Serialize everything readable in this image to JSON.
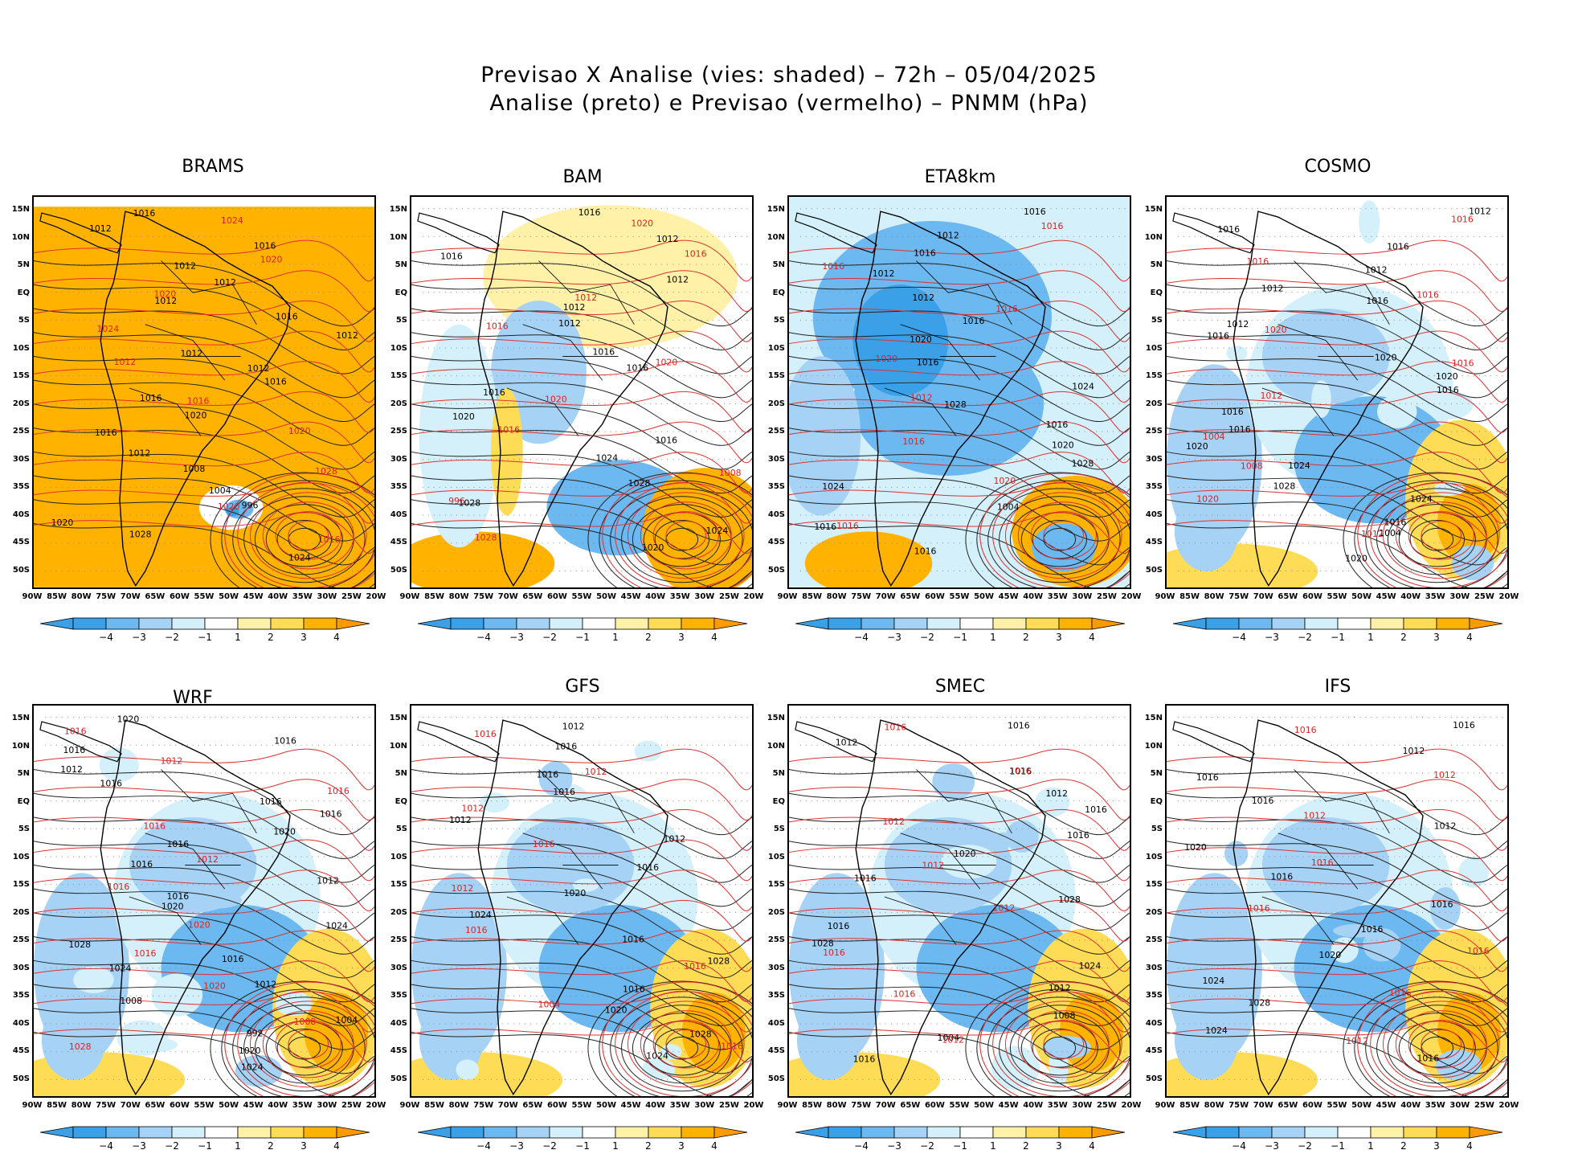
{
  "title": {
    "line1": "Previsao X Analise (vies: shaded) – 72h – 05/04/2025",
    "line2": "Analise (preto) e Previsao (vermelho) – PNMM (hPa)"
  },
  "axes": {
    "lat_labels": [
      "15N",
      "10N",
      "5N",
      "EQ",
      "5S",
      "10S",
      "15S",
      "20S",
      "25S",
      "30S",
      "35S",
      "40S",
      "45S",
      "50S"
    ],
    "lon_labels": [
      "90W",
      "85W",
      "80W",
      "75W",
      "70W",
      "65W",
      "60W",
      "55W",
      "50W",
      "45W",
      "40W",
      "35W",
      "30W",
      "25W",
      "20W"
    ]
  },
  "colorbar": {
    "ticks": [
      "−4",
      "−3",
      "−2",
      "−1",
      "1",
      "2",
      "3",
      "4"
    ],
    "colors": [
      "#3aa0e8",
      "#6cb8f0",
      "#a6d3f5",
      "#d4f0fa",
      "#ffffff",
      "#fff2a8",
      "#ffdc55",
      "#ffb300",
      "#ff9a00"
    ]
  },
  "panels": [
    {
      "name": "BRAMS",
      "base": "orange",
      "black_labels": [
        "1016",
        "1012",
        "1016",
        "1012",
        "1012",
        "1012",
        "1016",
        "1012",
        "1012",
        "1012",
        "1016",
        "1016",
        "1020",
        "1016",
        "1012",
        "1008",
        "1004",
        "996",
        "1020",
        "1028",
        "1024"
      ],
      "red_labels": [
        "1024",
        "1020",
        "1020",
        "1024",
        "1012",
        "1016",
        "1020",
        "1028",
        "1020",
        "1016"
      ]
    },
    {
      "name": "BAM",
      "base": "mixed",
      "black_labels": [
        "1016",
        "1012",
        "1016",
        "1012",
        "1012",
        "1012",
        "1016",
        "1016",
        "1016",
        "1020",
        "1016",
        "1024",
        "1028",
        "1028",
        "1024",
        "1020"
      ],
      "red_labels": [
        "1020",
        "1016",
        "1012",
        "1016",
        "1020",
        "1020",
        "1016",
        "1008",
        "996",
        "1028"
      ]
    },
    {
      "name": "ETA8km",
      "base": "blue",
      "black_labels": [
        "1016",
        "1012",
        "1016",
        "1012",
        "1012",
        "1016",
        "1020",
        "1016",
        "1024",
        "1028",
        "1016",
        "1020",
        "1028",
        "1024",
        "1004",
        "1016",
        "1016"
      ],
      "red_labels": [
        "1016",
        "1016",
        "1016",
        "1020",
        "1012",
        "1016",
        "1020",
        "1016"
      ]
    },
    {
      "name": "COSMO",
      "base": "light",
      "black_labels": [
        "1012",
        "1016",
        "1016",
        "1012",
        "1012",
        "1016",
        "1012",
        "1016",
        "1020",
        "1020",
        "1016",
        "1016",
        "1016",
        "1020",
        "1024",
        "1028",
        "1024",
        "1016",
        "1004",
        "1020"
      ],
      "red_labels": [
        "1016",
        "1016",
        "1016",
        "1020",
        "1016",
        "1012",
        "1004",
        "1008",
        "1020",
        "1012"
      ]
    },
    {
      "name": "WRF",
      "base": "light",
      "black_labels": [
        "1020",
        "1016",
        "1016",
        "1012",
        "1016",
        "1016",
        "1016",
        "1020",
        "1016",
        "1016",
        "1012",
        "1016",
        "1020",
        "1024",
        "1028",
        "1016",
        "1024",
        "1012",
        "1008",
        "1004",
        "992",
        "1020",
        "1024"
      ],
      "red_labels": [
        "1016",
        "1012",
        "1016",
        "1016",
        "1012",
        "1016",
        "1020",
        "1016",
        "1020",
        "1008",
        "1028"
      ]
    },
    {
      "name": "GFS",
      "base": "light",
      "black_labels": [
        "1012",
        "1016",
        "1016",
        "1016",
        "1012",
        "1012",
        "1016",
        "1020",
        "1024",
        "1016",
        "1028",
        "1016",
        "1020",
        "1028",
        "1024"
      ],
      "red_labels": [
        "1016",
        "1012",
        "1012",
        "1016",
        "1012",
        "1016",
        "1016",
        "1004",
        "1016"
      ]
    },
    {
      "name": "SMEC",
      "base": "light",
      "black_labels": [
        "1016",
        "1012",
        "1016",
        "1012",
        "1016",
        "1016",
        "1020",
        "1016",
        "1028",
        "1016",
        "1028",
        "1024",
        "1012",
        "1008",
        "1004",
        "1016"
      ],
      "red_labels": [
        "1016",
        "1016",
        "1012",
        "1012",
        "1012",
        "1016",
        "1016",
        "1012"
      ]
    },
    {
      "name": "IFS",
      "base": "light",
      "black_labels": [
        "1016",
        "1012",
        "1016",
        "1016",
        "1012",
        "1020",
        "1016",
        "1016",
        "1016",
        "1020",
        "1024",
        "1028",
        "1024",
        "1016"
      ],
      "red_labels": [
        "1016",
        "1012",
        "1012",
        "1016",
        "1016",
        "1016",
        "1016",
        "1012"
      ]
    }
  ]
}
